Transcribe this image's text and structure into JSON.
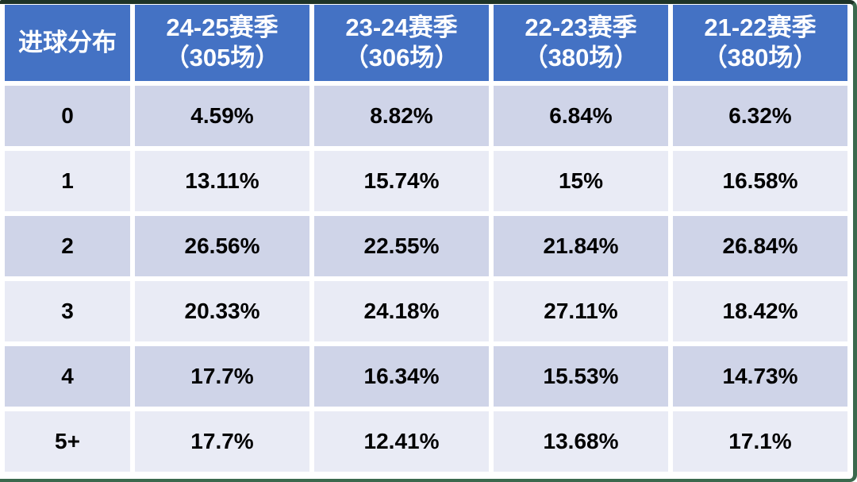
{
  "colors": {
    "header-bg": "#4472c4",
    "header-text": "#ffffff",
    "band-dark": "#cfd4e8",
    "band-light": "#e9ebf5",
    "body-text": "#000000",
    "grid-white": "#ffffff",
    "edge-top": "#1d3326",
    "edge-side": "#3b694d"
  },
  "table": {
    "corner_header": "进球分布",
    "columns": [
      {
        "season": "24-25赛季",
        "matches": "（305场）"
      },
      {
        "season": "23-24赛季",
        "matches": "（306场）"
      },
      {
        "season": "22-23赛季",
        "matches": "（380场）"
      },
      {
        "season": "21-22赛季",
        "matches": "（380场）"
      }
    ],
    "rows": [
      {
        "goals": "0",
        "values": [
          "4.59%",
          "8.82%",
          "6.84%",
          "6.32%"
        ]
      },
      {
        "goals": "1",
        "values": [
          "13.11%",
          "15.74%",
          "15%",
          "16.58%"
        ]
      },
      {
        "goals": "2",
        "values": [
          "26.56%",
          "22.55%",
          "21.84%",
          "26.84%"
        ]
      },
      {
        "goals": "3",
        "values": [
          "20.33%",
          "24.18%",
          "27.11%",
          "18.42%"
        ]
      },
      {
        "goals": "4",
        "values": [
          "17.7%",
          "16.34%",
          "15.53%",
          "14.73%"
        ]
      },
      {
        "goals": "5+",
        "values": [
          "17.7%",
          "12.41%",
          "13.68%",
          "17.1%"
        ]
      }
    ]
  },
  "chart_data": {
    "type": "table",
    "title": "进球分布",
    "columns": [
      "进球分布",
      "24-25赛季（305场）",
      "23-24赛季（306场）",
      "22-23赛季（380场）",
      "21-22赛季（380场）"
    ],
    "rows": [
      [
        "0",
        "4.59%",
        "8.82%",
        "6.84%",
        "6.32%"
      ],
      [
        "1",
        "13.11%",
        "15.74%",
        "15%",
        "16.58%"
      ],
      [
        "2",
        "26.56%",
        "22.55%",
        "21.84%",
        "26.84%"
      ],
      [
        "3",
        "20.33%",
        "24.18%",
        "27.11%",
        "18.42%"
      ],
      [
        "4",
        "17.7%",
        "16.34%",
        "15.53%",
        "14.73%"
      ],
      [
        "5+",
        "17.7%",
        "12.41%",
        "13.68%",
        "17.1%"
      ]
    ],
    "series": [
      {
        "name": "24-25赛季（305场）",
        "values": [
          4.59,
          13.11,
          26.56,
          20.33,
          17.7,
          17.7
        ]
      },
      {
        "name": "23-24赛季（306场）",
        "values": [
          8.82,
          15.74,
          22.55,
          24.18,
          16.34,
          12.41
        ]
      },
      {
        "name": "22-23赛季（380场）",
        "values": [
          6.84,
          15,
          21.84,
          27.11,
          15.53,
          13.68
        ]
      },
      {
        "name": "21-22赛季（380场）",
        "values": [
          6.32,
          16.58,
          26.84,
          18.42,
          14.73,
          17.1
        ]
      }
    ],
    "categories": [
      "0",
      "1",
      "2",
      "3",
      "4",
      "5+"
    ],
    "value_unit": "percent"
  }
}
